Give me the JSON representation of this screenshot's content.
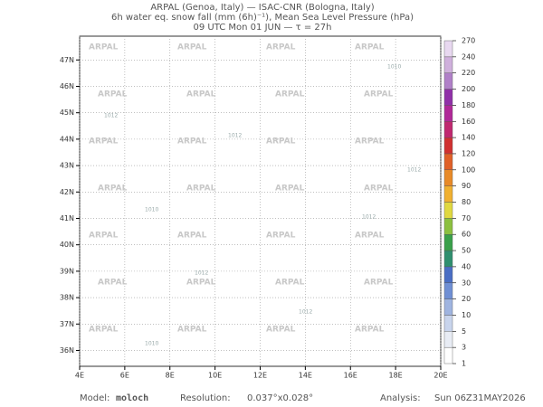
{
  "header": {
    "line1": "ARPAL (Genoa, Italy)  —  ISAC-CNR (Bologna, Italy)",
    "line2": "6h water eq. snow fall (mm (6h)⁻¹), Mean Sea Level Pressure (hPa)",
    "line3": "09 UTC Mon 01 JUN  —  τ = 27h"
  },
  "map": {
    "lon_range": [
      4,
      20
    ],
    "lat_range": [
      35.4,
      47.9
    ],
    "lon_ticks": [
      {
        "value": 4,
        "label": "4E"
      },
      {
        "value": 6,
        "label": "6E"
      },
      {
        "value": 8,
        "label": "8E"
      },
      {
        "value": 10,
        "label": "10E"
      },
      {
        "value": 12,
        "label": "12E"
      },
      {
        "value": 14,
        "label": "14E"
      },
      {
        "value": 16,
        "label": "16E"
      },
      {
        "value": 18,
        "label": "18E"
      },
      {
        "value": 20,
        "label": "20E"
      }
    ],
    "lat_ticks": [
      {
        "value": 36,
        "label": "36N"
      },
      {
        "value": 37,
        "label": "37N"
      },
      {
        "value": 38,
        "label": "38N"
      },
      {
        "value": 39,
        "label": "39N"
      },
      {
        "value": 40,
        "label": "40N"
      },
      {
        "value": 41,
        "label": "41N"
      },
      {
        "value": 42,
        "label": "42N"
      },
      {
        "value": 43,
        "label": "43N"
      },
      {
        "value": 44,
        "label": "44N"
      },
      {
        "value": 45,
        "label": "45N"
      },
      {
        "value": 46,
        "label": "46N"
      },
      {
        "value": 47,
        "label": "47N"
      }
    ],
    "watermark": "ARPAL",
    "isobar_labels": [
      "1010",
      "1012",
      "1012",
      "1012",
      "1010",
      "1012",
      "1012",
      "1012",
      "1010"
    ]
  },
  "colorbar": {
    "levels": [
      1,
      3,
      5,
      10,
      20,
      30,
      40,
      50,
      60,
      70,
      80,
      90,
      100,
      120,
      140,
      160,
      180,
      200,
      220,
      240,
      270
    ],
    "colors": [
      "#ffffff",
      "#e8ecf4",
      "#c8d4ec",
      "#9fb4e0",
      "#6f8fd4",
      "#4a6ec4",
      "#2f8f6f",
      "#3aa04a",
      "#8cc040",
      "#e0d840",
      "#f0b030",
      "#e88a28",
      "#e06028",
      "#d03030",
      "#c02870",
      "#b02898",
      "#9030a8",
      "#b080c8",
      "#cfb0dc",
      "#e8d8f0"
    ]
  },
  "footer": {
    "model_label": "Model:",
    "model": "moloch",
    "resolution_label": "Resolution:",
    "resolution": "0.037°x0.028°",
    "analysis_label": "Analysis:",
    "analysis": "Sun 06Z31MAY2026"
  }
}
